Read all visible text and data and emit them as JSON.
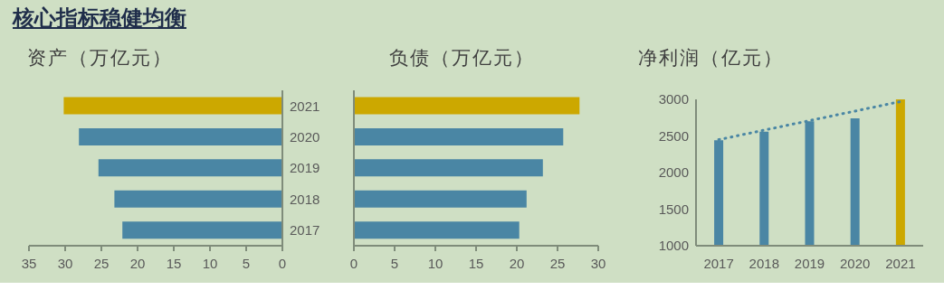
{
  "chart_data": [
    {
      "type": "bar",
      "orientation": "horizontal",
      "title": "核心指标稳健均衡",
      "subtitle": "资产（万亿元）",
      "categories": [
        "2021",
        "2020",
        "2019",
        "2018",
        "2017"
      ],
      "values": [
        30.2,
        28.1,
        25.4,
        23.2,
        22.1
      ],
      "colors": [
        "#cca800",
        "#4a86a4",
        "#4a86a4",
        "#4a86a4",
        "#4a86a4"
      ],
      "xlim": [
        35,
        0
      ],
      "xticks": [
        35,
        30,
        25,
        20,
        15,
        10,
        5,
        0
      ],
      "grid": false
    },
    {
      "type": "bar",
      "orientation": "horizontal",
      "title": "负债（万亿元）",
      "categories": [
        "2021",
        "2020",
        "2019",
        "2018",
        "2017"
      ],
      "values": [
        27.7,
        25.7,
        23.2,
        21.2,
        20.3
      ],
      "colors": [
        "#cca800",
        "#4a86a4",
        "#4a86a4",
        "#4a86a4",
        "#4a86a4"
      ],
      "xlim": [
        0,
        30
      ],
      "xticks": [
        0,
        5,
        10,
        15,
        20,
        25,
        30
      ],
      "tick_labels": "x",
      "grid": false
    },
    {
      "type": "bar",
      "title": "净利润（亿元）",
      "categories": [
        "2017",
        "2018",
        "2019",
        "2020",
        "2021"
      ],
      "series": [
        {
          "type": "bar",
          "values": [
            2440,
            2560,
            2700,
            2740,
            3000
          ],
          "colors": [
            "#4a86a4",
            "#4a86a4",
            "#4a86a4",
            "#4a86a4",
            "#cca800"
          ]
        },
        {
          "type": "line",
          "color": "#4a86a4",
          "line_style": "dotted",
          "values": [
            2450,
            2580,
            2710,
            2840,
            2970
          ]
        }
      ],
      "ylim": [
        1000,
        3000
      ],
      "yticks": [
        1000,
        1500,
        2000,
        2500,
        3000
      ],
      "grid": false
    }
  ]
}
